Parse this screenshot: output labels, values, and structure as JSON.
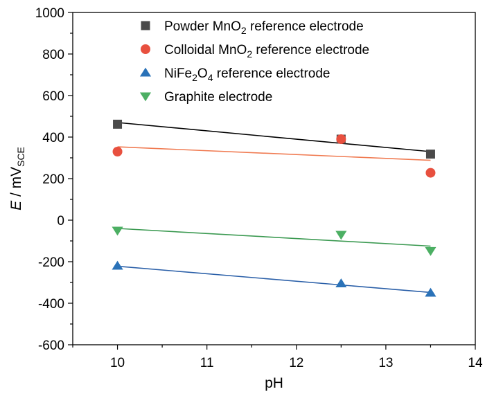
{
  "chart_data": {
    "type": "scatter",
    "x_label": "pH",
    "y_label": {
      "italic": "E",
      "rest": " / mV",
      "sub": "SCE"
    },
    "xlim": [
      9.5,
      14
    ],
    "ylim": [
      -600,
      1000
    ],
    "x_ticks": [
      10,
      11,
      12,
      13,
      14
    ],
    "y_ticks": [
      -600,
      -400,
      -200,
      0,
      200,
      400,
      600,
      800,
      1000
    ],
    "grid": false,
    "legend_position": "top-center",
    "series": [
      {
        "name": {
          "pre": "Powder MnO",
          "sub": "2",
          "post": " reference electrode"
        },
        "marker": "square",
        "color": "#4a4a4a",
        "line_color": "#000000",
        "x": [
          10,
          12.5,
          13.5
        ],
        "y": [
          462,
          390,
          318
        ],
        "fit": [
          [
            10,
            470
          ],
          [
            13.5,
            330
          ]
        ]
      },
      {
        "name": {
          "pre": "Colloidal MnO",
          "sub": "2",
          "post": " reference electrode"
        },
        "marker": "circle",
        "color": "#e8503f",
        "line_color": "#f07b52",
        "x": [
          10,
          12.5,
          13.5
        ],
        "y": [
          330,
          390,
          228
        ],
        "fit": [
          [
            10,
            353
          ],
          [
            13.5,
            288
          ]
        ]
      },
      {
        "name": {
          "pre": "NiFe",
          "sub": "2",
          "mid": "O",
          "sub2": "4",
          "post": " reference electrode"
        },
        "marker": "triangle-up",
        "color": "#2a72b8",
        "line_color": "#2a5fa8",
        "x": [
          10,
          12.5,
          13.5
        ],
        "y": [
          -220,
          -305,
          -350
        ],
        "fit": [
          [
            10,
            -222
          ],
          [
            13.5,
            -348
          ]
        ]
      },
      {
        "name": {
          "pre": "Graphite electrode"
        },
        "marker": "triangle-down",
        "color": "#4caf63",
        "line_color": "#3c9a52",
        "x": [
          10,
          12.5,
          13.5
        ],
        "y": [
          -50,
          -70,
          -148
        ],
        "fit": [
          [
            10,
            -40
          ],
          [
            13.5,
            -125
          ]
        ]
      }
    ]
  }
}
